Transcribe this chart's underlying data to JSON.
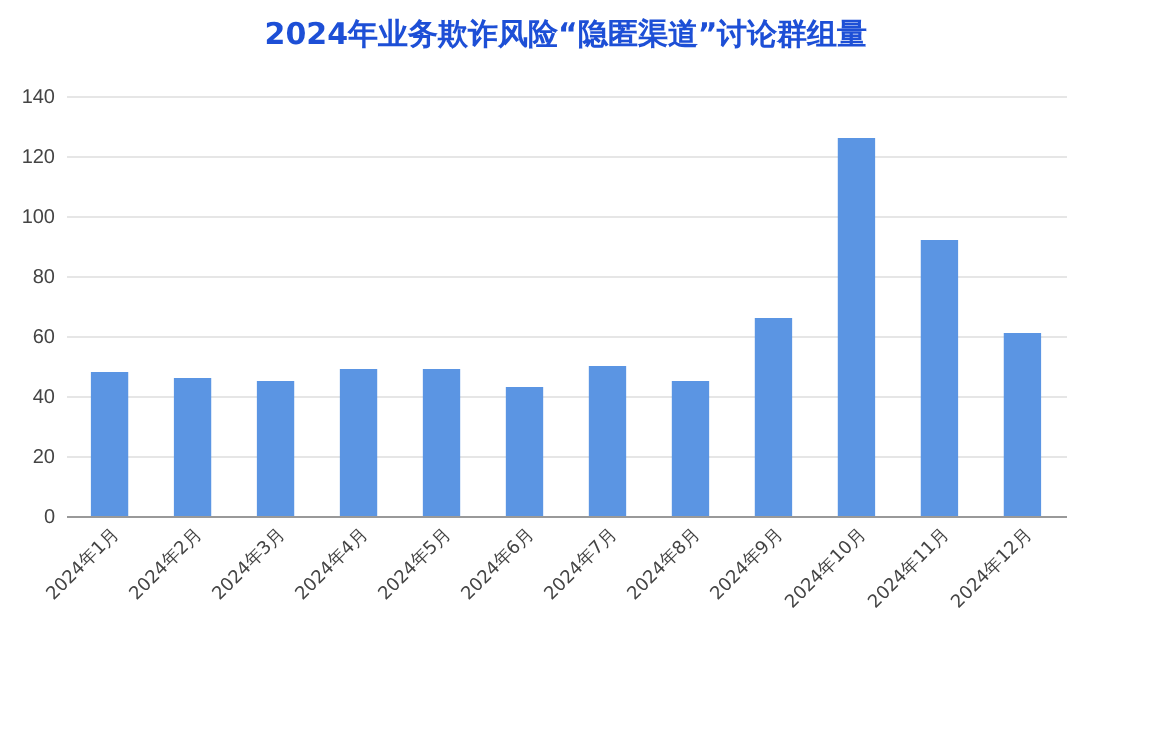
{
  "chart_data": {
    "type": "bar",
    "title": "2024年业务欺诈风险“隐匿渠道”讨论群组量",
    "categories": [
      "2024年1月",
      "2024年2月",
      "2024年3月",
      "2024年4月",
      "2024年5月",
      "2024年6月",
      "2024年7月",
      "2024年8月",
      "2024年9月",
      "2024年10月",
      "2024年11月",
      "2024年12月"
    ],
    "values": [
      48,
      46,
      45,
      49,
      49,
      43,
      50,
      45,
      66,
      126,
      92,
      61
    ],
    "color": "#5b95e3",
    "ylim": [
      0,
      140
    ],
    "yticks": [
      0,
      20,
      40,
      60,
      80,
      100,
      120,
      140
    ],
    "grid": "y"
  }
}
